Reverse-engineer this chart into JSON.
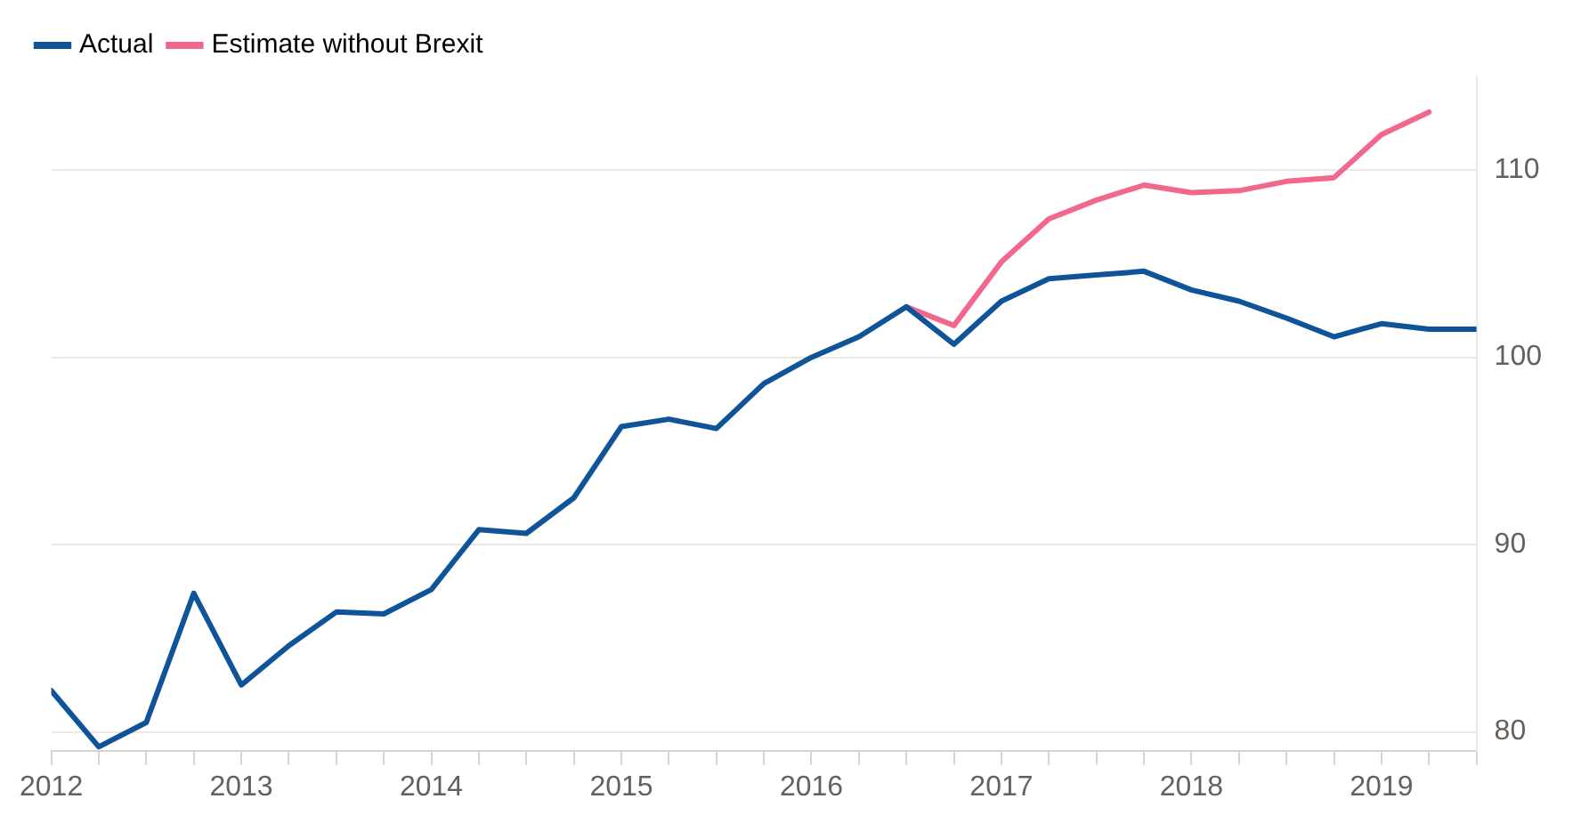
{
  "chart_data": {
    "type": "line",
    "x": [
      2012,
      2012.25,
      2012.5,
      2012.75,
      2013,
      2013.25,
      2013.5,
      2013.75,
      2014,
      2014.25,
      2014.5,
      2014.75,
      2015,
      2015.25,
      2015.5,
      2015.75,
      2016,
      2016.25,
      2016.5,
      2016.75,
      2017,
      2017.25,
      2017.5,
      2017.75,
      2018,
      2018.25,
      2018.5,
      2018.75,
      2019,
      2019.25,
      2019.5
    ],
    "series": [
      {
        "name": "Actual",
        "color": "#0f5499",
        "values": [
          82.2,
          79.2,
          80.5,
          87.4,
          82.5,
          84.6,
          86.4,
          86.3,
          87.6,
          90.8,
          90.6,
          92.5,
          96.3,
          96.7,
          96.2,
          98.6,
          100.0,
          101.1,
          102.7,
          100.7,
          103.0,
          104.2,
          104.4,
          104.6,
          103.6,
          103.0,
          102.1,
          101.1,
          101.8,
          101.5,
          101.5
        ]
      },
      {
        "name": "Estimate without Brexit",
        "color": "#f2678c",
        "values": [
          null,
          null,
          null,
          null,
          null,
          null,
          null,
          null,
          null,
          null,
          null,
          null,
          null,
          null,
          null,
          null,
          null,
          null,
          102.7,
          101.7,
          105.1,
          107.4,
          108.4,
          109.2,
          108.8,
          108.9,
          109.4,
          109.6,
          111.9,
          113.1,
          null
        ]
      }
    ],
    "xlim": [
      2012,
      2019.5
    ],
    "xticks": [
      {
        "value": 2012,
        "label": "2012"
      },
      {
        "value": 2012.25,
        "label": null
      },
      {
        "value": 2012.5,
        "label": null
      },
      {
        "value": 2012.75,
        "label": null
      },
      {
        "value": 2013,
        "label": "2013"
      },
      {
        "value": 2013.25,
        "label": null
      },
      {
        "value": 2013.5,
        "label": null
      },
      {
        "value": 2013.75,
        "label": null
      },
      {
        "value": 2014,
        "label": "2014"
      },
      {
        "value": 2014.25,
        "label": null
      },
      {
        "value": 2014.5,
        "label": null
      },
      {
        "value": 2014.75,
        "label": null
      },
      {
        "value": 2015,
        "label": "2015"
      },
      {
        "value": 2015.25,
        "label": null
      },
      {
        "value": 2015.5,
        "label": null
      },
      {
        "value": 2015.75,
        "label": null
      },
      {
        "value": 2016,
        "label": "2016"
      },
      {
        "value": 2016.25,
        "label": null
      },
      {
        "value": 2016.5,
        "label": null
      },
      {
        "value": 2016.75,
        "label": null
      },
      {
        "value": 2017,
        "label": "2017"
      },
      {
        "value": 2017.25,
        "label": null
      },
      {
        "value": 2017.5,
        "label": null
      },
      {
        "value": 2017.75,
        "label": null
      },
      {
        "value": 2018,
        "label": "2018"
      },
      {
        "value": 2018.25,
        "label": null
      },
      {
        "value": 2018.5,
        "label": null
      },
      {
        "value": 2018.75,
        "label": null
      },
      {
        "value": 2019,
        "label": "2019"
      },
      {
        "value": 2019.25,
        "label": null
      },
      {
        "value": 2019.5,
        "label": null
      }
    ],
    "ylim": [
      79,
      115
    ],
    "yticks": [
      80,
      90,
      100,
      110
    ],
    "grid": "y",
    "legend": "top left",
    "marker": "none",
    "line_style": "solid"
  }
}
